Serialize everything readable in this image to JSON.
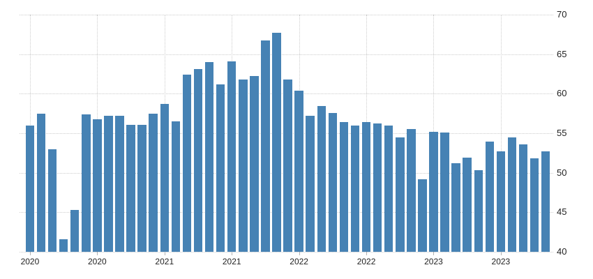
{
  "chart_data": {
    "type": "bar",
    "title": "",
    "x_unit": "month",
    "y_axis_position": "right",
    "grid": "dotted",
    "ylim": [
      40,
      70
    ],
    "yticks": [
      40,
      45,
      50,
      55,
      60,
      65,
      70
    ],
    "xticks": [
      {
        "label": "2020",
        "month_index": 0
      },
      {
        "label": "2020",
        "month_index": 6
      },
      {
        "label": "2021",
        "month_index": 12
      },
      {
        "label": "2021",
        "month_index": 18
      },
      {
        "label": "2022",
        "month_index": 24
      },
      {
        "label": "2022",
        "month_index": 30
      },
      {
        "label": "2023",
        "month_index": 36
      },
      {
        "label": "2023",
        "month_index": 42
      }
    ],
    "categories": [
      "2020-01",
      "2020-02",
      "2020-03",
      "2020-04",
      "2020-05",
      "2020-06",
      "2020-07",
      "2020-08",
      "2020-09",
      "2020-10",
      "2020-11",
      "2020-12",
      "2021-01",
      "2021-02",
      "2021-03",
      "2021-04",
      "2021-05",
      "2021-06",
      "2021-07",
      "2021-08",
      "2021-09",
      "2021-10",
      "2021-11",
      "2021-12",
      "2022-01",
      "2022-02",
      "2022-03",
      "2022-04",
      "2022-05",
      "2022-06",
      "2022-07",
      "2022-08",
      "2022-09",
      "2022-10",
      "2022-11",
      "2022-12",
      "2023-01",
      "2023-02",
      "2023-03",
      "2023-04",
      "2023-05",
      "2023-06",
      "2023-07",
      "2023-08",
      "2023-09",
      "2023-10",
      "2023-11"
    ],
    "values": [
      56.0,
      57.5,
      53.0,
      41.6,
      45.3,
      57.4,
      56.8,
      57.2,
      57.2,
      56.1,
      56.1,
      57.5,
      58.7,
      56.5,
      62.4,
      63.1,
      64.0,
      61.2,
      64.1,
      61.8,
      62.2,
      66.7,
      67.7,
      61.8,
      60.4,
      57.2,
      58.4,
      57.6,
      56.4,
      56.0,
      56.4,
      56.2,
      56.0,
      54.5,
      55.5,
      49.2,
      55.2,
      55.1,
      51.2,
      51.9,
      50.3,
      53.9,
      52.7,
      54.5,
      53.6,
      51.8,
      52.7
    ],
    "colors": {
      "bar": "#4682b4",
      "grid": "#cccccc",
      "axis_tick": "#b3b3b3",
      "label_text": "#222222",
      "background": "#ffffff"
    }
  }
}
